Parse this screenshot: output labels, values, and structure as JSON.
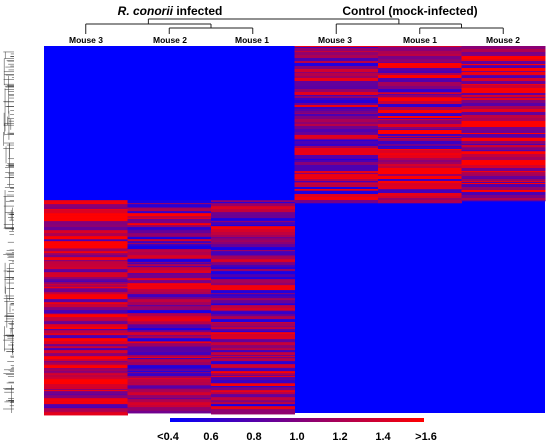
{
  "chart_data": {
    "type": "heatmap",
    "column_groups": [
      {
        "label_italic": "R. conorii",
        "label_rest": " infected",
        "columns": [
          "Mouse 3",
          "Mouse 2",
          "Mouse 1"
        ]
      },
      {
        "label": "Control (mock-infected)",
        "columns": [
          "Mouse 3",
          "Mouse 1",
          "Mouse 2"
        ]
      }
    ],
    "columns": [
      "Mouse 3",
      "Mouse 2",
      "Mouse 1",
      "Mouse 3",
      "Mouse 1",
      "Mouse 2"
    ],
    "value_range": [
      0.4,
      1.6
    ],
    "colorbar": {
      "tick_labels": [
        "<0.4",
        "0.6",
        "0.8",
        "1.0",
        "1.2",
        "1.4",
        ">1.6"
      ],
      "colors": [
        "#0000ff",
        "#ff0000"
      ]
    },
    "row_clusters": [
      {
        "description_values": [
          0.4,
          0.4,
          0.4,
          1.05,
          1.15,
          1.3
        ],
        "row_fraction": 0.42
      },
      {
        "description_values": [
          1.25,
          1.05,
          1.05,
          0.4,
          0.4,
          0.4
        ],
        "row_fraction": 0.58
      }
    ],
    "background_color": "#0000ff",
    "high_color": "#ff0000",
    "low_color": "#0000ff"
  }
}
